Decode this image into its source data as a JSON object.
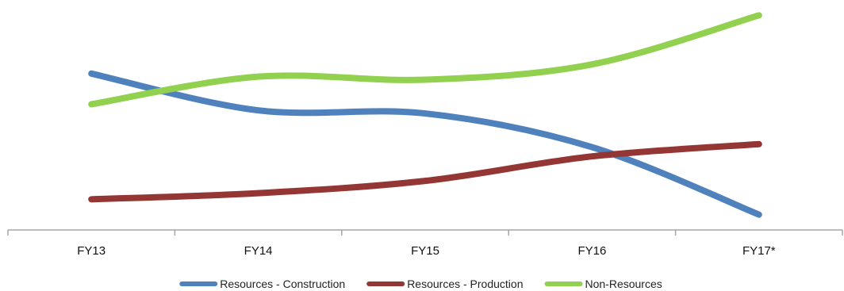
{
  "chart_data": {
    "type": "line",
    "categories": [
      "FY13",
      "FY14",
      "FY15",
      "FY16",
      "FY17*"
    ],
    "series": [
      {
        "name": "Resources - Construction",
        "values": [
          51,
          39,
          38,
          27,
          5
        ],
        "color": "#4f81bd"
      },
      {
        "name": "Resources - Production",
        "values": [
          10,
          12,
          16,
          24,
          28
        ],
        "color": "#943634"
      },
      {
        "name": "Non-Resources",
        "values": [
          41,
          50,
          49,
          54,
          70
        ],
        "color": "#92d050"
      }
    ],
    "ylim": [
      0,
      75
    ],
    "grid": false,
    "legend_position": "bottom"
  }
}
